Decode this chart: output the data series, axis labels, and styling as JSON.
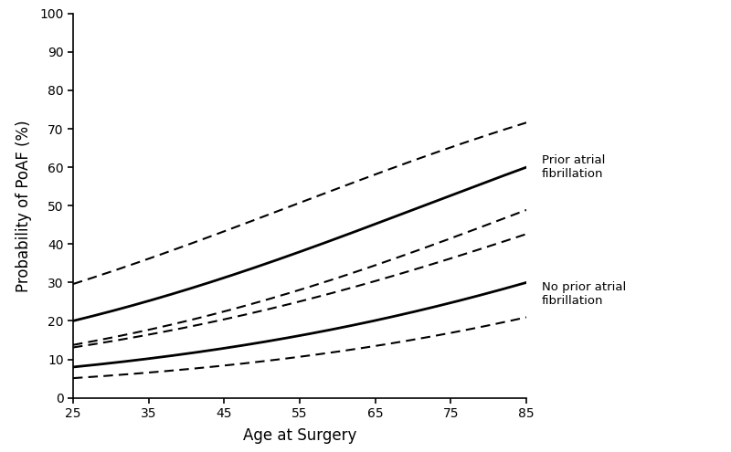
{
  "xlabel": "Age at Surgery",
  "ylabel": "Probability of PoAF (%)",
  "xlim": [
    25,
    85
  ],
  "ylim": [
    0,
    100
  ],
  "xticks": [
    25,
    35,
    45,
    55,
    65,
    75,
    85
  ],
  "yticks": [
    0,
    10,
    20,
    30,
    40,
    50,
    60,
    70,
    80,
    90,
    100
  ],
  "label_prior": "Prior atrial\nfibrillation",
  "label_no_prior": "No prior atrial\nfibrillation",
  "background_color": "#ffffff",
  "line_color": "#000000",
  "prior_a": -2.132,
  "prior_b": 0.02985,
  "no_prior_a": -3.107,
  "no_prior_b": 0.02658,
  "prior_upper_shift": 0.52,
  "prior_lower_shift": -0.45,
  "no_prior_upper_shift": 0.55,
  "no_prior_lower_shift": -0.48
}
